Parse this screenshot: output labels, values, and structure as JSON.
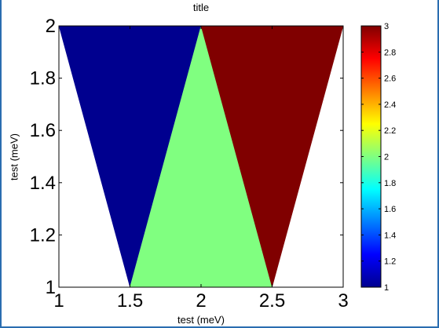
{
  "chart_data": {
    "type": "patch",
    "title": "title",
    "xlabel": "test (meV)",
    "ylabel": "test (meV)",
    "xlim": [
      1,
      3
    ],
    "ylim": [
      1,
      2
    ],
    "xticks": [
      "1",
      "1.5",
      "2",
      "2.5",
      "3"
    ],
    "yticks": [
      "1",
      "1.2",
      "1.4",
      "1.6",
      "1.8",
      "2"
    ],
    "grid": false,
    "colormap": "jet",
    "clim": [
      1,
      3
    ],
    "colorbar_ticks": [
      "1",
      "1.2",
      "1.4",
      "1.6",
      "1.8",
      "2",
      "2.2",
      "2.4",
      "2.6",
      "2.8",
      "3"
    ],
    "patches": [
      {
        "value": 1,
        "color": "#00008f",
        "vertices": [
          [
            1,
            2
          ],
          [
            2,
            2
          ],
          [
            1.5,
            1
          ]
        ]
      },
      {
        "value": 2,
        "color": "#80ff80",
        "vertices": [
          [
            1.5,
            1
          ],
          [
            2,
            2
          ],
          [
            2.5,
            1
          ]
        ]
      },
      {
        "value": 3,
        "color": "#800000",
        "vertices": [
          [
            2,
            2
          ],
          [
            3,
            2
          ],
          [
            2.5,
            1
          ]
        ]
      }
    ]
  }
}
